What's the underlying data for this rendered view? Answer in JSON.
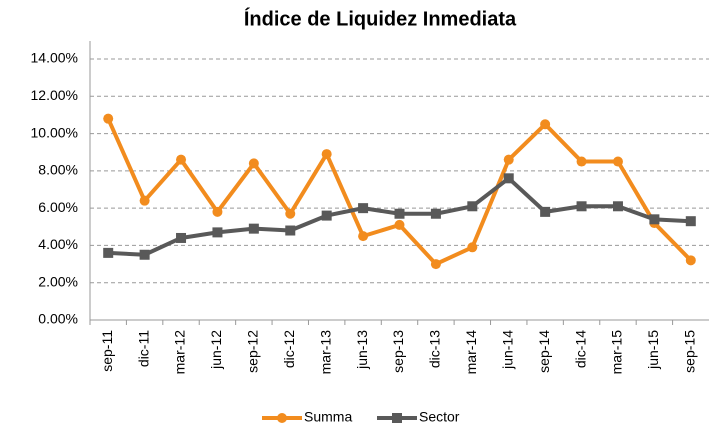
{
  "chart_data": {
    "type": "line",
    "title": "Índice de Liquidez Inmediata",
    "categories": [
      "sep-11",
      "dic-11",
      "mar-12",
      "jun-12",
      "sep-12",
      "dic-12",
      "mar-13",
      "jun-13",
      "sep-13",
      "dic-13",
      "mar-14",
      "jun-14",
      "sep-14",
      "dic-14",
      "mar-15",
      "jun-15",
      "sep-15"
    ],
    "series": [
      {
        "name": "Summa",
        "color": "#f28c1e",
        "values": [
          10.8,
          6.4,
          8.6,
          5.8,
          8.4,
          5.7,
          8.9,
          4.5,
          5.1,
          3.0,
          3.9,
          8.6,
          10.5,
          8.5,
          8.5,
          5.2,
          3.2
        ]
      },
      {
        "name": "Sector",
        "color": "#595959",
        "values": [
          3.6,
          3.5,
          4.4,
          4.7,
          4.9,
          4.8,
          5.6,
          6.0,
          5.7,
          5.7,
          6.1,
          7.6,
          5.8,
          6.1,
          6.1,
          5.4,
          5.3
        ]
      }
    ],
    "ylim": [
      0,
      14
    ],
    "yticks": [
      {
        "value": 0,
        "label": "0.00%"
      },
      {
        "value": 2,
        "label": "2.00%"
      },
      {
        "value": 4,
        "label": "4.00%"
      },
      {
        "value": 6,
        "label": "6.00%"
      },
      {
        "value": 8,
        "label": "8.00%"
      },
      {
        "value": 10,
        "label": "10.00%"
      },
      {
        "value": 12,
        "label": "12.00%"
      },
      {
        "value": 14,
        "label": "14.00%"
      }
    ],
    "grid": true
  }
}
